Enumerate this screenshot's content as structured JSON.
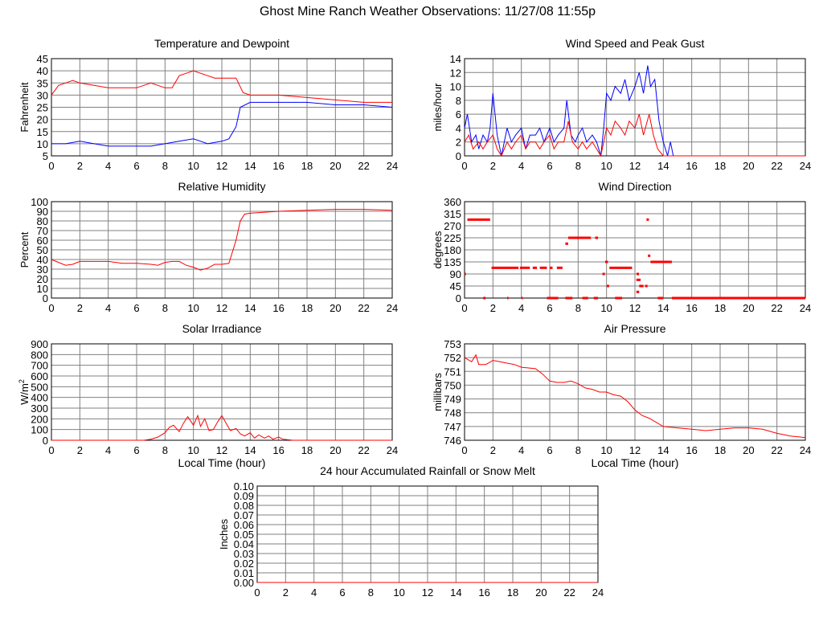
{
  "title": "Ghost Mine Ranch Weather Observations: 11/27/08 11:55p",
  "colors": {
    "red": "#ff0000",
    "blue": "#0000ff",
    "grid": "#808080"
  },
  "chart_data": [
    {
      "id": "temp",
      "type": "line",
      "title": "Temperature and Dewpoint",
      "xlabel": "",
      "ylabel": "Fahrenheit",
      "xlim": [
        0,
        24
      ],
      "ylim": [
        5,
        45
      ],
      "xticks": [
        0,
        2,
        4,
        6,
        8,
        10,
        12,
        14,
        16,
        18,
        20,
        22,
        24
      ],
      "yticks": [
        5,
        10,
        15,
        20,
        25,
        30,
        35,
        40,
        45
      ],
      "series": [
        {
          "name": "Temperature",
          "color": "#ff0000",
          "x": [
            0,
            0.5,
            1,
            1.5,
            2,
            3,
            4,
            5,
            6,
            6.5,
            7,
            7.5,
            8,
            8.5,
            9,
            9.5,
            10,
            10.5,
            11,
            11.5,
            12,
            12.5,
            13,
            13.5,
            14,
            16,
            18,
            20,
            22,
            24
          ],
          "y": [
            30,
            34,
            35,
            36,
            35,
            34,
            33,
            33,
            33,
            34,
            35,
            34,
            33,
            33,
            38,
            39,
            40,
            39,
            38,
            37,
            37,
            37,
            37,
            31,
            30,
            30,
            29,
            28,
            27,
            27
          ]
        },
        {
          "name": "Dewpoint",
          "color": "#0000ff",
          "x": [
            0,
            1,
            2,
            3,
            4,
            5,
            6,
            7,
            8,
            9,
            10,
            11,
            12,
            12.5,
            13,
            13.3,
            14,
            16,
            18,
            20,
            22,
            24
          ],
          "y": [
            10,
            10,
            11,
            10,
            9,
            9,
            9,
            9,
            10,
            11,
            12,
            10,
            11,
            12,
            17,
            25,
            27,
            27,
            27,
            26,
            26,
            25
          ]
        }
      ]
    },
    {
      "id": "wind",
      "type": "line",
      "title": "Wind Speed and Peak Gust",
      "xlabel": "",
      "ylabel": "miles/hour",
      "xlim": [
        0,
        24
      ],
      "ylim": [
        0,
        14
      ],
      "xticks": [
        0,
        2,
        4,
        6,
        8,
        10,
        12,
        14,
        16,
        18,
        20,
        22,
        24
      ],
      "yticks": [
        0,
        2,
        4,
        6,
        8,
        10,
        12,
        14
      ],
      "series": [
        {
          "name": "Peak Gust",
          "color": "#0000ff",
          "x": [
            0,
            0.2,
            0.5,
            0.8,
            1,
            1.3,
            1.6,
            1.8,
            2,
            2.3,
            2.6,
            3,
            3.3,
            3.6,
            4,
            4.3,
            4.6,
            5,
            5.3,
            5.6,
            6,
            6.3,
            6.6,
            7,
            7.2,
            7.5,
            7.8,
            8,
            8.3,
            8.6,
            9,
            9.3,
            9.6,
            9.8,
            10,
            10.3,
            10.6,
            11,
            11.3,
            11.6,
            12,
            12.3,
            12.6,
            12.9,
            13.1,
            13.4,
            13.7,
            14,
            14.3,
            14.5,
            14.7,
            16,
            18,
            20,
            22,
            24
          ],
          "y": [
            4,
            6,
            2,
            3,
            1,
            3,
            2,
            4,
            9,
            3,
            0,
            4,
            2,
            3,
            4,
            1,
            3,
            3,
            4,
            2,
            4,
            2,
            3,
            4,
            8,
            3,
            2,
            3,
            4,
            2,
            3,
            2,
            0,
            4,
            9,
            8,
            10,
            9,
            11,
            8,
            10,
            12,
            9,
            13,
            10,
            11,
            5,
            2,
            0,
            2,
            0,
            0,
            0,
            0,
            0,
            0
          ]
        },
        {
          "name": "Wind Speed",
          "color": "#ff0000",
          "x": [
            0,
            0.3,
            0.6,
            1,
            1.3,
            1.6,
            2,
            2.3,
            2.6,
            3,
            3.3,
            3.6,
            4,
            4.3,
            4.6,
            5,
            5.3,
            5.6,
            6,
            6.3,
            6.6,
            7,
            7.3,
            7.6,
            8,
            8.3,
            8.6,
            9,
            9.3,
            9.6,
            10,
            10.3,
            10.6,
            11,
            11.3,
            11.6,
            12,
            12.3,
            12.6,
            13,
            13.3,
            13.6,
            14,
            14.3,
            16,
            18,
            20,
            22,
            24
          ],
          "y": [
            2,
            3,
            1,
            2,
            1,
            2,
            3,
            1,
            0,
            2,
            1,
            2,
            3,
            1,
            2,
            2,
            1,
            2,
            3,
            1,
            2,
            2,
            5,
            2,
            1,
            2,
            1,
            2,
            1,
            0,
            4,
            3,
            5,
            4,
            3,
            5,
            4,
            6,
            3,
            6,
            3,
            1,
            0,
            0,
            0,
            0,
            0,
            0,
            0
          ]
        }
      ]
    },
    {
      "id": "humidity",
      "type": "line",
      "title": "Relative Humidity",
      "xlabel": "",
      "ylabel": "Percent",
      "xlim": [
        0,
        24
      ],
      "ylim": [
        0,
        100
      ],
      "xticks": [
        0,
        2,
        4,
        6,
        8,
        10,
        12,
        14,
        16,
        18,
        20,
        22,
        24
      ],
      "yticks": [
        0,
        10,
        20,
        30,
        40,
        50,
        60,
        70,
        80,
        90,
        100
      ],
      "series": [
        {
          "name": "Relative Humidity",
          "color": "#ff0000",
          "x": [
            0,
            0.5,
            1,
            1.5,
            2,
            3,
            4,
            5,
            6,
            7,
            7.5,
            8,
            8.5,
            9,
            9.5,
            10,
            10.5,
            11,
            11.5,
            12,
            12.5,
            13,
            13.3,
            13.6,
            14,
            16,
            18,
            20,
            22,
            24
          ],
          "y": [
            40,
            37,
            34,
            35,
            38,
            38,
            38,
            36,
            36,
            35,
            34,
            37,
            38,
            38,
            34,
            32,
            29,
            31,
            35,
            35,
            36,
            60,
            80,
            87,
            88,
            90,
            91,
            92,
            92,
            91
          ]
        }
      ]
    },
    {
      "id": "direction",
      "type": "scatter",
      "title": "Wind Direction",
      "xlabel": "",
      "ylabel": "degrees",
      "xlim": [
        0,
        24
      ],
      "ylim": [
        0,
        360
      ],
      "xticks": [
        0,
        2,
        4,
        6,
        8,
        10,
        12,
        14,
        16,
        18,
        20,
        22,
        24
      ],
      "yticks": [
        0,
        45,
        90,
        135,
        180,
        225,
        270,
        315,
        360
      ],
      "segments": [
        {
          "x": [
            0.2,
            1.8
          ],
          "y": 293
        },
        {
          "x": [
            0,
            0.1
          ],
          "y": 90
        },
        {
          "x": [
            1.9,
            3.8
          ],
          "y": 113
        },
        {
          "x": [
            3.9,
            4.6
          ],
          "y": 113
        },
        {
          "x": [
            4.8,
            5.1
          ],
          "y": 113
        },
        {
          "x": [
            5.3,
            5.8
          ],
          "y": 113
        },
        {
          "x": [
            6,
            6.2
          ],
          "y": 113
        },
        {
          "x": [
            6.5,
            6.9
          ],
          "y": 113
        },
        {
          "x": [
            7.1,
            7.3
          ],
          "y": 203
        },
        {
          "x": [
            7.3,
            8.9
          ],
          "y": 225
        },
        {
          "x": [
            9.2,
            9.4
          ],
          "y": 225
        },
        {
          "x": [
            10.2,
            11.8
          ],
          "y": 113
        },
        {
          "x": [
            9.9,
            10.1
          ],
          "y": 135
        },
        {
          "x": [
            12.1,
            12.4
          ],
          "y": 68
        },
        {
          "x": [
            12.3,
            12.6
          ],
          "y": 45
        },
        {
          "x": [
            12.1,
            12.3
          ],
          "y": 23
        },
        {
          "x": [
            13.1,
            14.6
          ],
          "y": 135
        },
        {
          "x": [
            14.6,
            24
          ],
          "y": 0
        },
        {
          "x": [
            3.0,
            3.1
          ],
          "y": 0
        },
        {
          "x": [
            4.0,
            4.1
          ],
          "y": 0
        },
        {
          "x": [
            5.8,
            6.6
          ],
          "y": 0
        },
        {
          "x": [
            7.1,
            7.6
          ],
          "y": 0
        },
        {
          "x": [
            8.3,
            8.7
          ],
          "y": 0
        },
        {
          "x": [
            9.1,
            9.4
          ],
          "y": 0
        },
        {
          "x": [
            10.6,
            11.1
          ],
          "y": 0
        },
        {
          "x": [
            13.6,
            14
          ],
          "y": 0
        }
      ],
      "points": [
        {
          "x": 12.9,
          "y": 293
        },
        {
          "x": 13.0,
          "y": 158
        },
        {
          "x": 12.2,
          "y": 90
        },
        {
          "x": 10.1,
          "y": 45
        },
        {
          "x": 9.8,
          "y": 90
        },
        {
          "x": 12.8,
          "y": 45
        },
        {
          "x": 14.5,
          "y": 135
        },
        {
          "x": 1.4,
          "y": 0
        }
      ]
    },
    {
      "id": "solar",
      "type": "line",
      "title": "Solar Irradiance",
      "xlabel": "Local Time (hour)",
      "ylabel": "W/m",
      "ylabel_sup": "2",
      "xlim": [
        0,
        24
      ],
      "ylim": [
        0,
        900
      ],
      "xticks": [
        0,
        2,
        4,
        6,
        8,
        10,
        12,
        14,
        16,
        18,
        20,
        22,
        24
      ],
      "yticks": [
        0,
        100,
        200,
        300,
        400,
        500,
        600,
        700,
        800,
        900
      ],
      "series": [
        {
          "name": "Solar Irradiance",
          "color": "#ff0000",
          "x": [
            0,
            6.5,
            7,
            7.5,
            8,
            8.3,
            8.6,
            9,
            9.3,
            9.6,
            10,
            10.3,
            10.5,
            10.8,
            11.1,
            11.4,
            11.7,
            12,
            12.3,
            12.6,
            13,
            13.3,
            13.6,
            14,
            14.3,
            14.6,
            15,
            15.3,
            15.6,
            16,
            16.3,
            16.6,
            17,
            24
          ],
          "y": [
            0,
            0,
            10,
            30,
            70,
            120,
            140,
            80,
            160,
            220,
            140,
            230,
            130,
            200,
            90,
            100,
            170,
            230,
            160,
            90,
            110,
            60,
            40,
            70,
            20,
            50,
            20,
            40,
            10,
            30,
            10,
            5,
            0,
            0
          ]
        }
      ]
    },
    {
      "id": "pressure",
      "type": "line",
      "title": "Air Pressure",
      "xlabel": "Local Time (hour)",
      "ylabel": "millibars",
      "xlim": [
        0,
        24
      ],
      "ylim": [
        746,
        753
      ],
      "xticks": [
        0,
        2,
        4,
        6,
        8,
        10,
        12,
        14,
        16,
        18,
        20,
        22,
        24
      ],
      "yticks": [
        746,
        747,
        748,
        749,
        750,
        751,
        752,
        753
      ],
      "series": [
        {
          "name": "Air Pressure",
          "color": "#ff0000",
          "x": [
            0,
            0.5,
            0.8,
            1,
            1.5,
            2,
            2.5,
            3,
            3.5,
            4,
            5,
            5.5,
            6,
            6.5,
            7,
            7.5,
            8,
            8.5,
            9,
            9.5,
            10,
            10.5,
            11,
            11.5,
            12,
            12.5,
            13,
            13.5,
            14,
            15,
            16,
            17,
            18,
            19,
            20,
            21,
            22,
            23,
            24
          ],
          "y": [
            752,
            751.7,
            752.2,
            751.5,
            751.5,
            751.8,
            751.7,
            751.6,
            751.5,
            751.3,
            751.2,
            750.8,
            750.3,
            750.2,
            750.2,
            750.3,
            750.1,
            749.8,
            749.7,
            749.5,
            749.5,
            749.3,
            749.2,
            748.8,
            748.2,
            747.8,
            747.6,
            747.3,
            747.0,
            746.9,
            746.8,
            746.7,
            746.8,
            746.9,
            746.9,
            746.8,
            746.5,
            746.3,
            746.2
          ]
        }
      ]
    },
    {
      "id": "rain",
      "type": "line",
      "title": "24 hour Accumulated Rainfall or Snow Melt",
      "xlabel": "",
      "ylabel": "Inches",
      "xlim": [
        0,
        24
      ],
      "ylim": [
        0,
        0.1
      ],
      "xticks": [
        0,
        2,
        4,
        6,
        8,
        10,
        12,
        14,
        16,
        18,
        20,
        22,
        24
      ],
      "yticks": [
        "0.00",
        "0.01",
        "0.02",
        "0.03",
        "0.04",
        "0.05",
        "0.06",
        "0.07",
        "0.08",
        "0.09",
        "0.10"
      ],
      "series": [
        {
          "name": "Rainfall",
          "color": "#ff0000",
          "x": [
            0,
            24
          ],
          "y": [
            0,
            0
          ]
        }
      ]
    }
  ]
}
